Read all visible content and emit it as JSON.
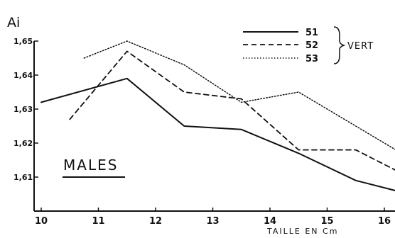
{
  "chart_data": {
    "type": "line",
    "y_axis_title": "Ai",
    "xlabel": "TAILLE EN Cm",
    "annotation": "MALES",
    "legend_group": "VERT",
    "x_ticks": [
      "10",
      "11",
      "12",
      "13",
      "14",
      "15",
      "16"
    ],
    "y_ticks": [
      "1,61",
      "1,62",
      "1,63",
      "1,64",
      "1,65"
    ],
    "xlim": [
      10,
      16.2
    ],
    "ylim": [
      1.6,
      1.65
    ],
    "grid": false,
    "legend_position": "top-right",
    "series": [
      {
        "name": "51",
        "style": "solid",
        "x": [
          10,
          11.5,
          12.5,
          13.5,
          14.5,
          15.5,
          16.2
        ],
        "y": [
          1.632,
          1.639,
          1.625,
          1.624,
          1.617,
          1.609,
          1.606
        ]
      },
      {
        "name": "52",
        "style": "dashed",
        "x": [
          10.5,
          11.5,
          12.5,
          13.5,
          14.5,
          15.5,
          16.2
        ],
        "y": [
          1.627,
          1.647,
          1.635,
          1.633,
          1.618,
          1.618,
          1.612
        ]
      },
      {
        "name": "53",
        "style": "dotted",
        "x": [
          10.75,
          11.5,
          12.5,
          13.5,
          14.5,
          15.5,
          16.2
        ],
        "y": [
          1.645,
          1.65,
          1.643,
          1.632,
          1.635,
          1.625,
          1.618
        ]
      }
    ]
  }
}
